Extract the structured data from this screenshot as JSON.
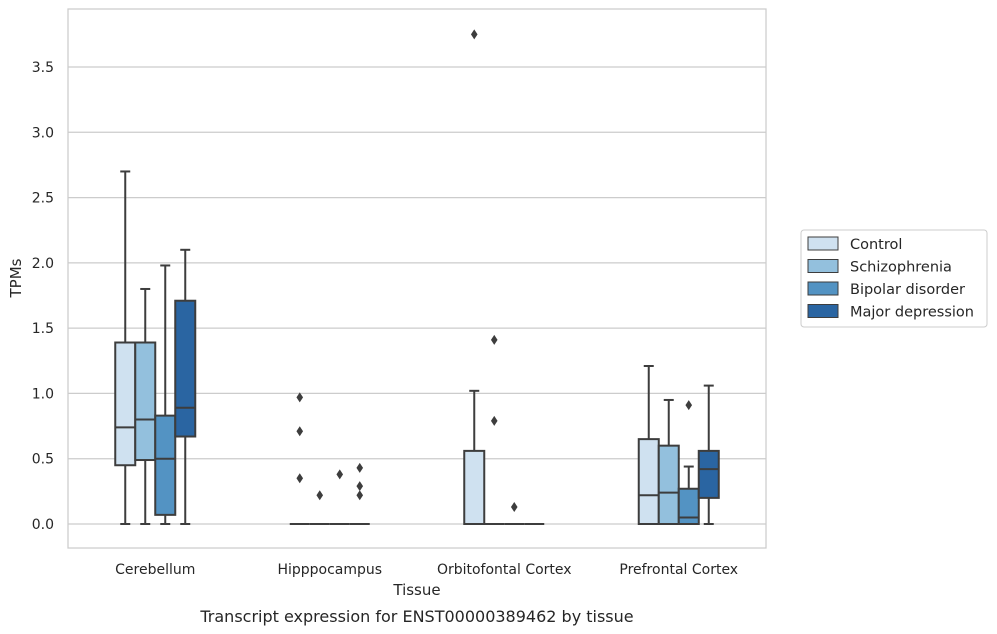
{
  "chart_data": {
    "type": "boxplot",
    "xlabel": "Tissue",
    "ylabel": "TPMs",
    "caption": "Transcript expression for ENST00000389462 by tissue",
    "ylim": [
      -0.18,
      3.94
    ],
    "yticks": [
      "0.0",
      "0.5",
      "1.0",
      "1.5",
      "2.0",
      "2.5",
      "3.0",
      "3.5"
    ],
    "grid": "horizontal",
    "legend_position": "right-outside",
    "categories": [
      "Cerebellum",
      "Hipppocampus",
      "Orbitofontal Cortex",
      "Prefrontal Cortex"
    ],
    "series": [
      {
        "name": "Control",
        "color": "#cfe1f0",
        "boxes": [
          {
            "whislo": 0.0,
            "q1": 0.45,
            "med": 0.74,
            "q3": 1.39,
            "whishi": 2.7,
            "fliers": []
          },
          {
            "whislo": 0.0,
            "q1": 0.0,
            "med": 0.0,
            "q3": 0.0,
            "whishi": 0.0,
            "fliers": [
              0.35,
              0.71,
              0.97
            ]
          },
          {
            "whislo": 0.0,
            "q1": 0.0,
            "med": 0.0,
            "q3": 0.56,
            "whishi": 1.02,
            "fliers": [
              3.75
            ]
          },
          {
            "whislo": 0.0,
            "q1": 0.0,
            "med": 0.22,
            "q3": 0.65,
            "whishi": 1.21,
            "fliers": []
          }
        ]
      },
      {
        "name": "Schizophrenia",
        "color": "#93c0dd",
        "boxes": [
          {
            "whislo": 0.0,
            "q1": 0.49,
            "med": 0.8,
            "q3": 1.39,
            "whishi": 1.8,
            "fliers": []
          },
          {
            "whislo": 0.0,
            "q1": 0.0,
            "med": 0.0,
            "q3": 0.0,
            "whishi": 0.0,
            "fliers": [
              0.22
            ]
          },
          {
            "whislo": 0.0,
            "q1": 0.0,
            "med": 0.0,
            "q3": 0.0,
            "whishi": 0.0,
            "fliers": [
              1.41,
              0.79
            ]
          },
          {
            "whislo": 0.0,
            "q1": 0.0,
            "med": 0.24,
            "q3": 0.6,
            "whishi": 0.95,
            "fliers": []
          }
        ]
      },
      {
        "name": "Bipolar disorder",
        "color": "#5393c3",
        "boxes": [
          {
            "whislo": 0.0,
            "q1": 0.07,
            "med": 0.5,
            "q3": 0.83,
            "whishi": 1.98,
            "fliers": []
          },
          {
            "whislo": 0.0,
            "q1": 0.0,
            "med": 0.0,
            "q3": 0.0,
            "whishi": 0.0,
            "fliers": [
              0.38
            ]
          },
          {
            "whislo": 0.0,
            "q1": 0.0,
            "med": 0.0,
            "q3": 0.0,
            "whishi": 0.0,
            "fliers": [
              0.13
            ]
          },
          {
            "whislo": 0.0,
            "q1": 0.0,
            "med": 0.05,
            "q3": 0.27,
            "whishi": 0.44,
            "fliers": [
              0.91
            ]
          }
        ]
      },
      {
        "name": "Major depression",
        "color": "#2a65a2",
        "boxes": [
          {
            "whislo": 0.0,
            "q1": 0.67,
            "med": 0.89,
            "q3": 1.71,
            "whishi": 2.1,
            "fliers": []
          },
          {
            "whislo": 0.0,
            "q1": 0.0,
            "med": 0.0,
            "q3": 0.0,
            "whishi": 0.0,
            "fliers": [
              0.43,
              0.29,
              0.22
            ]
          },
          {
            "whislo": 0.0,
            "q1": 0.0,
            "med": 0.0,
            "q3": 0.0,
            "whishi": 0.0,
            "fliers": []
          },
          {
            "whislo": 0.0,
            "q1": 0.2,
            "med": 0.42,
            "q3": 0.56,
            "whishi": 1.06,
            "fliers": []
          }
        ]
      }
    ]
  }
}
